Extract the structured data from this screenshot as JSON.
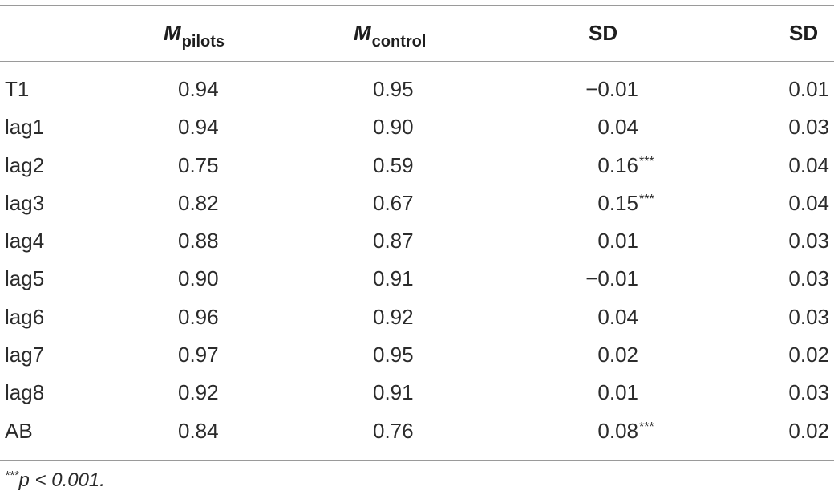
{
  "table": {
    "headers": {
      "label": "",
      "m_pilots": {
        "main": "M",
        "sub": "pilots"
      },
      "m_control": {
        "main": "M",
        "sub": "control"
      },
      "diff": "SD",
      "sd": "SD"
    },
    "rows": [
      {
        "label": "T1",
        "m_pilots": "0.94",
        "m_control": "0.95",
        "diff": "−0.01",
        "sig": "",
        "sd": "0.01"
      },
      {
        "label": "lag1",
        "m_pilots": "0.94",
        "m_control": "0.90",
        "diff": "0.04",
        "sig": "",
        "sd": "0.03"
      },
      {
        "label": "lag2",
        "m_pilots": "0.75",
        "m_control": "0.59",
        "diff": "0.16",
        "sig": "***",
        "sd": "0.04"
      },
      {
        "label": "lag3",
        "m_pilots": "0.82",
        "m_control": "0.67",
        "diff": "0.15",
        "sig": "***",
        "sd": "0.04"
      },
      {
        "label": "lag4",
        "m_pilots": "0.88",
        "m_control": "0.87",
        "diff": "0.01",
        "sig": "",
        "sd": "0.03"
      },
      {
        "label": "lag5",
        "m_pilots": "0.90",
        "m_control": "0.91",
        "diff": "−0.01",
        "sig": "",
        "sd": "0.03"
      },
      {
        "label": "lag6",
        "m_pilots": "0.96",
        "m_control": "0.92",
        "diff": "0.04",
        "sig": "",
        "sd": "0.03"
      },
      {
        "label": "lag7",
        "m_pilots": "0.97",
        "m_control": "0.95",
        "diff": "0.02",
        "sig": "",
        "sd": "0.02"
      },
      {
        "label": "lag8",
        "m_pilots": "0.92",
        "m_control": "0.91",
        "diff": "0.01",
        "sig": "",
        "sd": "0.03"
      },
      {
        "label": "AB",
        "m_pilots": "0.84",
        "m_control": "0.76",
        "diff": "0.08",
        "sig": "***",
        "sd": "0.02"
      }
    ],
    "footnote": {
      "stars": "***",
      "text": "p < 0.001."
    }
  },
  "colors": {
    "text": "#2b2b2b",
    "rule": "#9a9a9a"
  }
}
